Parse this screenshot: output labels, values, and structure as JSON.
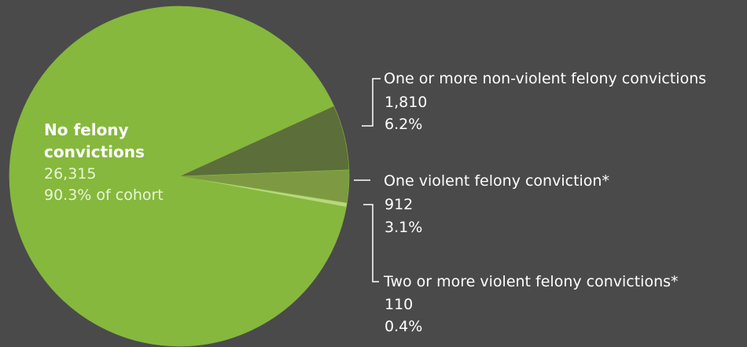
{
  "chart_data": {
    "type": "pie",
    "title": "",
    "slices": [
      {
        "name_lines": [
          "No felony",
          "convictions"
        ],
        "count": "26,315",
        "percent_label": "90.3% of cohort",
        "value": 90.3,
        "color": "#86b83d"
      },
      {
        "name": "One or more non-violent felony convictions",
        "count": "1,810",
        "percent_label": "6.2%",
        "value": 6.2,
        "color": "#5c6e3a"
      },
      {
        "name": "One violent felony conviction*",
        "count": "912",
        "percent_label": "3.1%",
        "value": 3.1,
        "color": "#7d9a42"
      },
      {
        "name": "Two or more violent felony convictions*",
        "count": "110",
        "percent_label": "0.4%",
        "value": 0.4,
        "color": "#b9d77f"
      }
    ],
    "colors": {
      "background": "#4a4a4a",
      "callout_text": "#ffffff",
      "inner_value_text": "#eaf5d6",
      "leader_line": "#ffffff"
    }
  }
}
